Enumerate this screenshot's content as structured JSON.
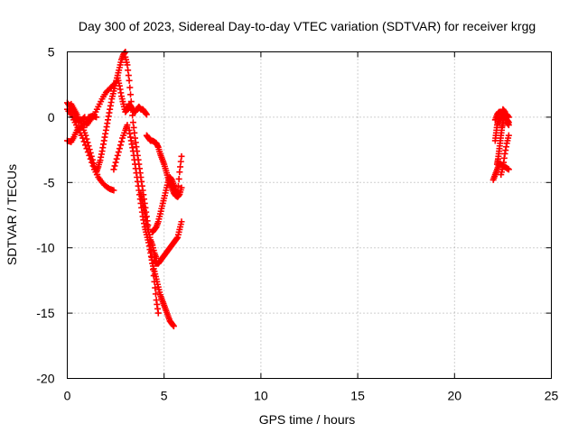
{
  "chart_data": {
    "type": "scatter",
    "title": "Day 300 of 2023, Sidereal Day-to-day VTEC variation (SDTVAR) for receiver krgg",
    "xlabel": "GPS time / hours",
    "ylabel": "SDTVAR / TECUs",
    "xlim": [
      0,
      25
    ],
    "ylim": [
      -20,
      5
    ],
    "xticks": [
      0,
      5,
      10,
      15,
      20,
      25
    ],
    "yticks": [
      -20,
      -15,
      -10,
      -5,
      0,
      5
    ],
    "grid": true,
    "marker": "plus",
    "color": "#ff0000",
    "tracks": [
      {
        "x": [
          0.0,
          0.15,
          0.3,
          0.45,
          0.6,
          0.75,
          0.9
        ],
        "y": [
          1.1,
          0.8,
          0.4,
          -0.1,
          -0.3,
          -0.2,
          0.0
        ]
      },
      {
        "x": [
          0.0,
          0.2,
          0.4,
          0.6,
          0.8,
          1.0,
          1.2,
          1.4,
          1.6,
          1.8,
          2.0,
          2.2,
          2.4
        ],
        "y": [
          0.6,
          0.2,
          -0.4,
          -1.0,
          -1.6,
          -2.4,
          -3.2,
          -4.0,
          -4.6,
          -5.0,
          -5.3,
          -5.5,
          -5.6
        ]
      },
      {
        "x": [
          0.0,
          0.2,
          0.35,
          0.5,
          0.7,
          0.9,
          1.1,
          1.3,
          1.5
        ],
        "y": [
          -1.8,
          -1.9,
          -1.5,
          -1.0,
          -0.8,
          -0.5,
          0.0,
          0.1,
          0.0
        ]
      },
      {
        "x": [
          0.2,
          0.35,
          0.5,
          0.65,
          0.8,
          0.95,
          1.1,
          1.25,
          1.4,
          1.55
        ],
        "y": [
          1.0,
          0.6,
          0.2,
          -0.3,
          -0.8,
          -1.4,
          -2.2,
          -3.0,
          -3.8,
          -4.4
        ]
      },
      {
        "x": [
          1.5,
          1.6,
          1.7,
          1.8,
          1.9,
          2.0,
          2.1,
          2.2,
          2.3,
          2.4,
          2.5,
          2.6,
          2.7,
          2.8,
          2.9,
          3.0
        ],
        "y": [
          -4.2,
          -3.8,
          -3.3,
          -2.6,
          -1.8,
          -1.0,
          -0.2,
          0.6,
          1.4,
          2.0,
          2.6,
          3.2,
          3.8,
          4.4,
          4.8,
          5.0
        ]
      },
      {
        "x": [
          1.0,
          1.2,
          1.4,
          1.6,
          1.8,
          2.0,
          2.2,
          2.4,
          2.6
        ],
        "y": [
          -0.6,
          -0.2,
          0.2,
          0.8,
          1.4,
          1.9,
          2.2,
          2.5,
          2.8
        ]
      },
      {
        "x": [
          2.4,
          2.55,
          2.7,
          2.85,
          3.0,
          3.1
        ],
        "y": [
          -4.0,
          -3.2,
          -2.4,
          -1.6,
          -1.0,
          -0.6
        ]
      },
      {
        "x": [
          2.6,
          2.7,
          2.8,
          2.9,
          3.0,
          3.1,
          3.2,
          3.3,
          3.4
        ],
        "y": [
          3.0,
          2.4,
          1.6,
          1.0,
          0.4,
          0.6,
          1.0,
          0.8,
          0.4
        ]
      },
      {
        "x": [
          3.0,
          3.1,
          3.2,
          3.3,
          3.4,
          3.5,
          3.6,
          3.7,
          3.8,
          3.9,
          4.0,
          4.1,
          4.2,
          4.3,
          4.4,
          4.5,
          4.6,
          4.7
        ],
        "y": [
          4.6,
          4.0,
          2.8,
          1.2,
          -0.4,
          -1.6,
          -2.6,
          -3.6,
          -4.6,
          -5.6,
          -6.6,
          -7.6,
          -8.6,
          -9.8,
          -11.2,
          -12.6,
          -14.0,
          -15.0
        ]
      },
      {
        "x": [
          3.2,
          3.3,
          3.4,
          3.5,
          3.6,
          3.7,
          3.8,
          3.9,
          4.0,
          4.1,
          4.2,
          4.3,
          4.4,
          4.5,
          4.6,
          4.7,
          4.8,
          4.9,
          5.0,
          5.1,
          5.2,
          5.3,
          5.4,
          5.5
        ],
        "y": [
          -1.0,
          -1.8,
          -2.6,
          -3.6,
          -4.6,
          -5.6,
          -6.6,
          -7.6,
          -8.4,
          -9.0,
          -9.6,
          -10.4,
          -11.2,
          -11.8,
          -12.4,
          -13.0,
          -13.6,
          -14.0,
          -14.4,
          -14.8,
          -15.2,
          -15.6,
          -15.8,
          -16.0
        ]
      },
      {
        "x": [
          3.4,
          3.5,
          3.6,
          3.7,
          3.8,
          3.9,
          4.0,
          4.1
        ],
        "y": [
          0.6,
          0.4,
          0.6,
          0.8,
          0.6,
          0.6,
          0.4,
          0.2
        ]
      },
      {
        "x": [
          4.1,
          4.2,
          4.3,
          4.4,
          4.5,
          4.6,
          4.7,
          4.8,
          4.9,
          5.0,
          5.1,
          5.2,
          5.3,
          5.4,
          5.5,
          5.6,
          5.7,
          5.8,
          5.9
        ],
        "y": [
          -1.4,
          -1.6,
          -1.8,
          -1.8,
          -1.9,
          -2.0,
          -2.3,
          -2.8,
          -3.2,
          -3.6,
          -4.1,
          -4.6,
          -5.0,
          -5.4,
          -5.8,
          -6.0,
          -6.1,
          -5.9,
          -5.4
        ]
      },
      {
        "x": [
          3.8,
          3.9,
          4.0,
          4.1,
          4.2,
          4.3,
          4.4,
          4.5,
          4.6
        ],
        "y": [
          -5.8,
          -6.6,
          -7.4,
          -8.2,
          -8.8,
          -9.4,
          -9.8,
          -10.4,
          -10.8
        ]
      },
      {
        "x": [
          4.5,
          4.6,
          4.7,
          4.8,
          4.9,
          5.0,
          5.1,
          5.2,
          5.3,
          5.4,
          5.5,
          5.6,
          5.7,
          5.8,
          5.9
        ],
        "y": [
          -11.0,
          -11.2,
          -11.2,
          -11.0,
          -10.8,
          -10.6,
          -10.4,
          -10.2,
          -10.0,
          -9.8,
          -9.6,
          -9.4,
          -9.2,
          -8.6,
          -8.0
        ]
      },
      {
        "x": [
          4.4,
          4.5,
          4.6,
          4.7,
          4.8,
          4.9,
          5.0,
          5.1,
          5.2,
          5.3,
          5.4,
          5.5,
          5.6,
          5.7,
          5.8,
          5.9
        ],
        "y": [
          -8.8,
          -8.6,
          -8.4,
          -8.0,
          -7.4,
          -6.8,
          -6.2,
          -5.6,
          -5.0,
          -4.6,
          -4.8,
          -5.2,
          -5.6,
          -5.8,
          -4.2,
          -3.0
        ]
      },
      {
        "x": [
          22.1,
          22.2,
          22.3,
          22.4,
          22.5,
          22.6,
          22.7,
          22.8
        ],
        "y": [
          -0.2,
          0.2,
          0.4,
          0.3,
          0.2,
          0.1,
          0.2,
          0.0
        ]
      },
      {
        "x": [
          22.1,
          22.15,
          22.2,
          22.3,
          22.4,
          22.5,
          22.6,
          22.7,
          22.8
        ],
        "y": [
          -1.8,
          -1.2,
          -0.6,
          -0.2,
          0.0,
          0.6,
          0.4,
          -0.4,
          -0.6
        ]
      },
      {
        "x": [
          22.2,
          22.25,
          22.3,
          22.35,
          22.4,
          22.45,
          22.5,
          22.55,
          22.6,
          22.7,
          22.8
        ],
        "y": [
          -3.6,
          -3.2,
          -2.6,
          -2.0,
          -1.4,
          -0.8,
          -0.4,
          0.0,
          0.2,
          -0.2,
          -0.4
        ]
      },
      {
        "x": [
          22.0,
          22.1,
          22.2,
          22.3,
          22.4,
          22.5,
          22.6,
          22.7,
          22.8
        ],
        "y": [
          -4.8,
          -4.4,
          -4.0,
          -3.6,
          -3.6,
          -3.8,
          -3.8,
          -3.9,
          -4.0
        ]
      },
      {
        "x": [
          22.4,
          22.5,
          22.6,
          22.7,
          22.8
        ],
        "y": [
          -4.4,
          -3.8,
          -2.8,
          -2.0,
          -1.4
        ]
      }
    ]
  }
}
